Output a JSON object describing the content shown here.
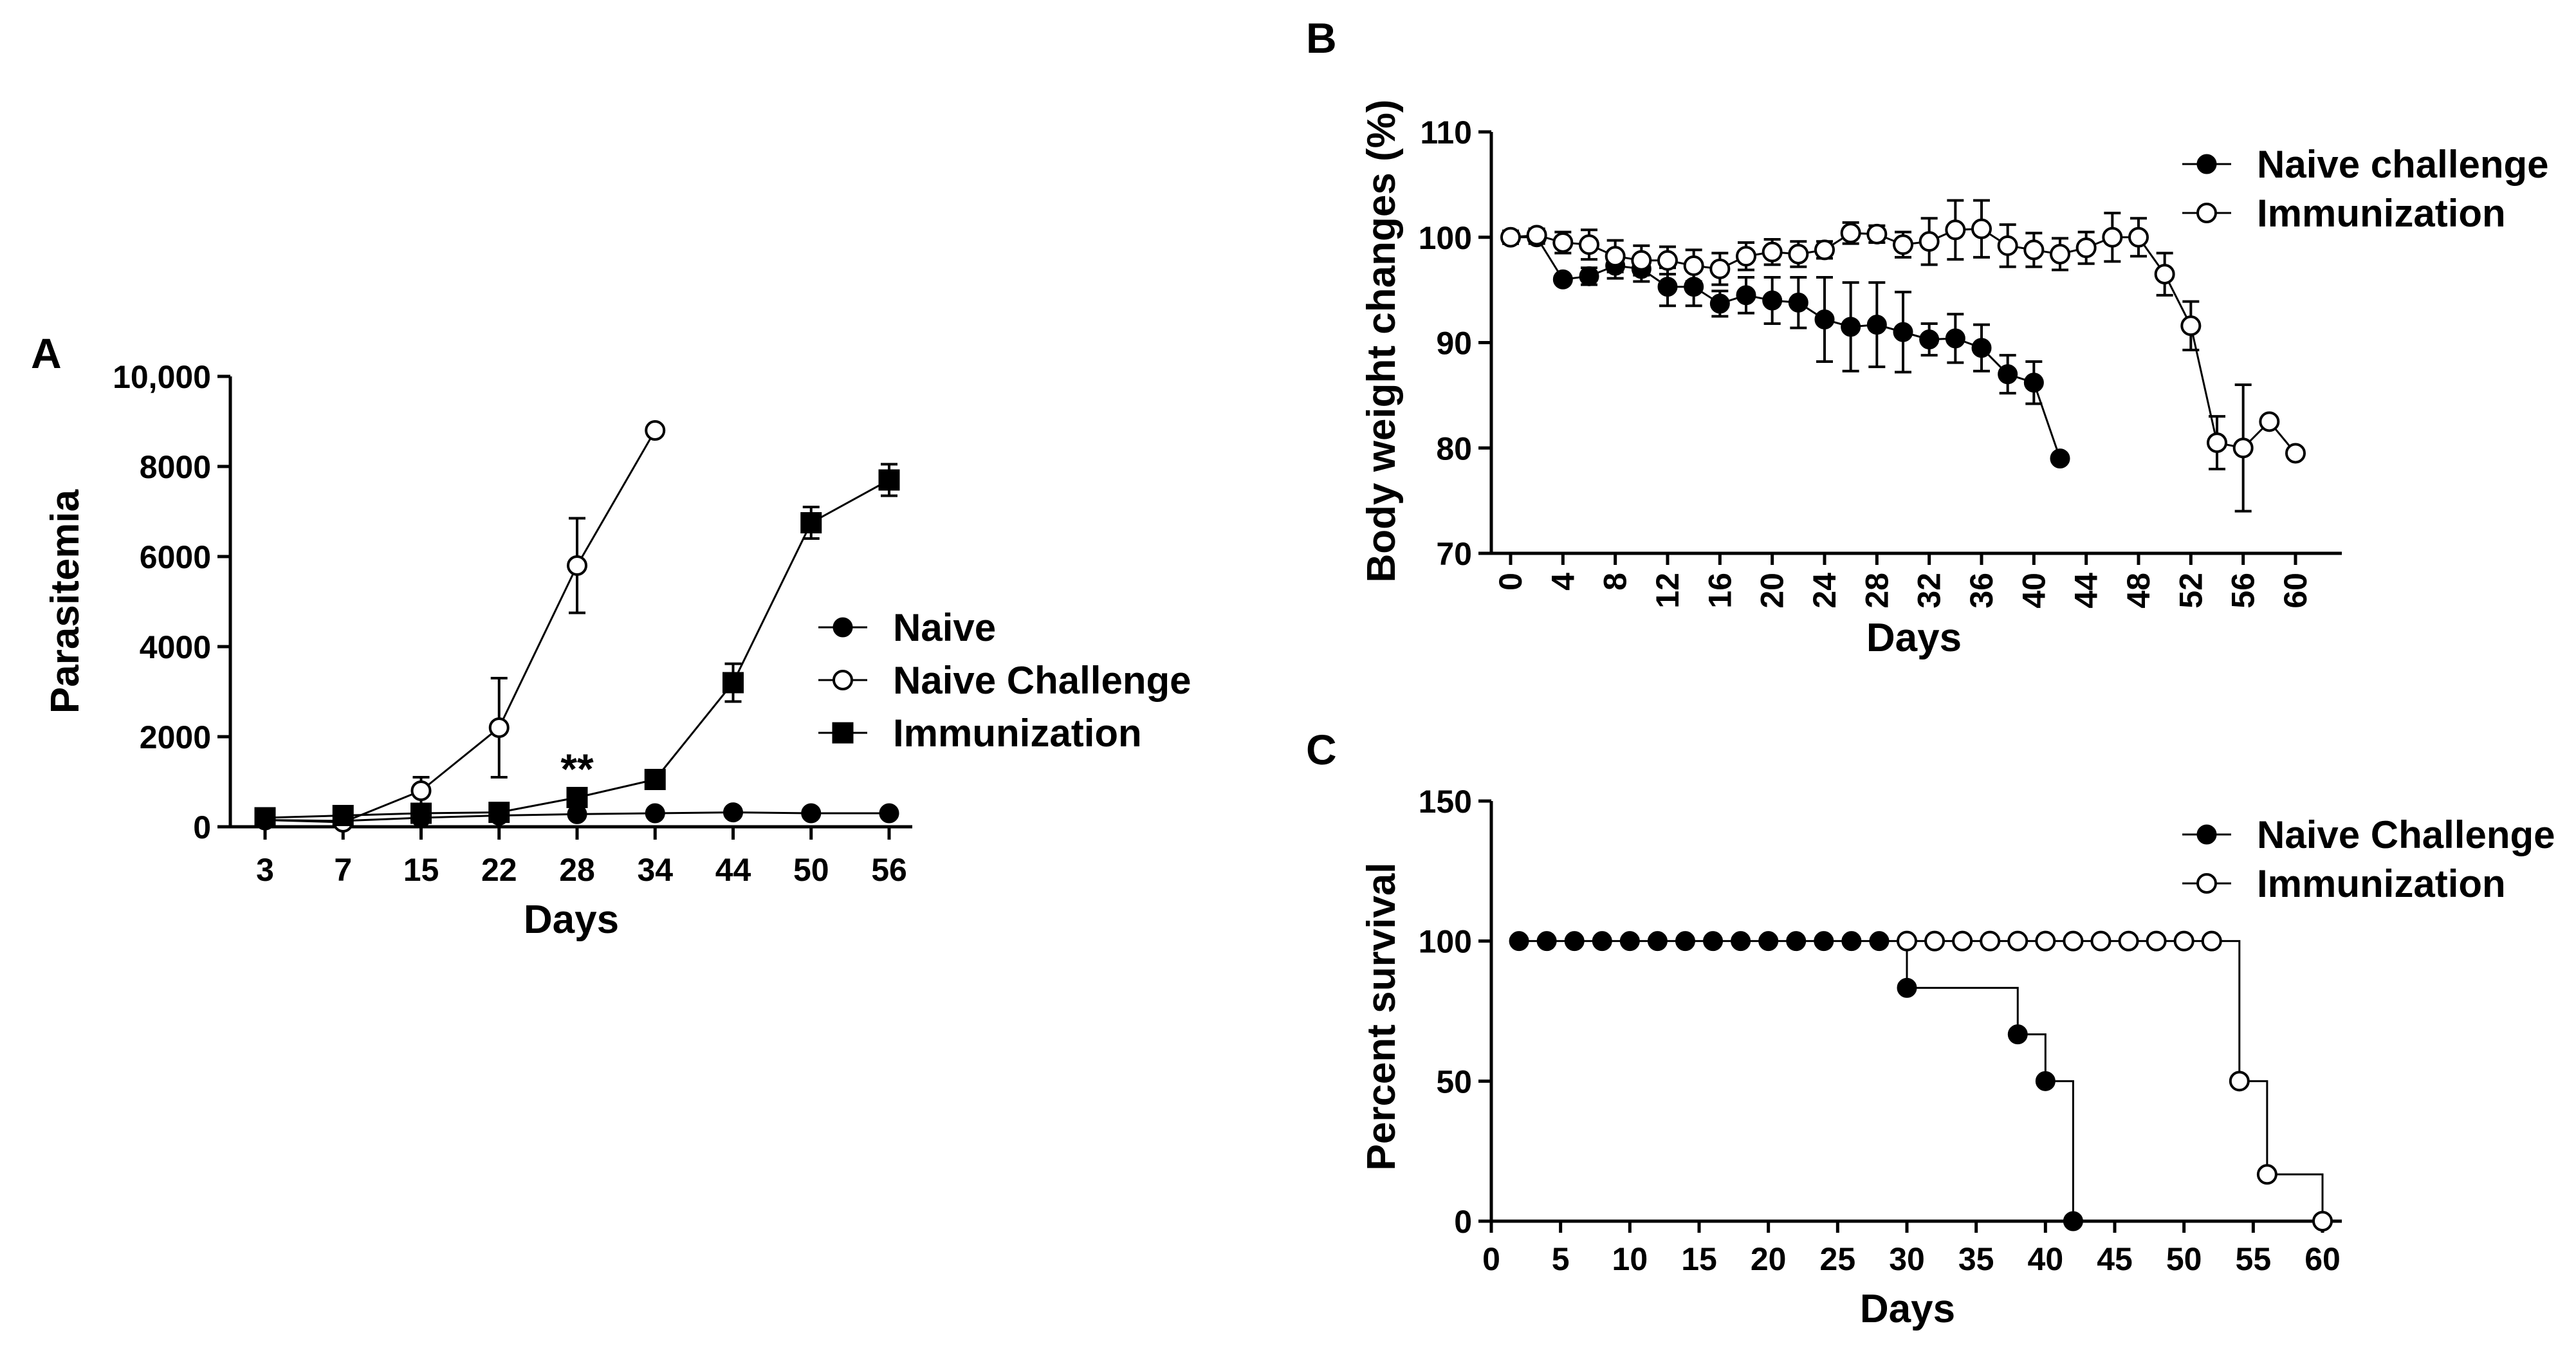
{
  "colors": {
    "ink": "#000000",
    "background": "#ffffff"
  },
  "chart_data": [
    {
      "panel": "A",
      "type": "line",
      "title": "",
      "xlabel": "Days",
      "ylabel": "Parasitemia",
      "categories": [
        "3",
        "7",
        "15",
        "22",
        "28",
        "34",
        "44",
        "50",
        "56"
      ],
      "ylim": [
        0,
        10000
      ],
      "yticks": [
        0,
        2000,
        4000,
        6000,
        8000,
        10000
      ],
      "ytick_labels": [
        "0",
        "2000",
        "4000",
        "6000",
        "8000",
        "10,000"
      ],
      "annotation": {
        "text": "**",
        "category": "28"
      },
      "series": [
        {
          "name": "Naive",
          "marker": "filled-circle",
          "values": [
            150,
            130,
            200,
            250,
            280,
            300,
            320,
            300,
            300
          ],
          "errors": [
            0,
            0,
            0,
            0,
            0,
            0,
            0,
            0,
            0
          ]
        },
        {
          "name": "Naive Challenge",
          "marker": "open-circle",
          "values": [
            150,
            100,
            800,
            2200,
            5800,
            8800,
            null,
            null,
            null
          ],
          "errors": [
            0,
            0,
            300,
            1100,
            1050,
            0,
            null,
            null,
            null
          ]
        },
        {
          "name": "Immunization",
          "marker": "filled-square",
          "values": [
            200,
            250,
            300,
            320,
            650,
            1050,
            3200,
            6750,
            7700
          ],
          "errors": [
            0,
            0,
            0,
            0,
            100,
            0,
            420,
            350,
            350
          ]
        }
      ]
    },
    {
      "panel": "B",
      "type": "line",
      "title": "",
      "xlabel": "Days",
      "ylabel": "Body weight changes (%)",
      "xlim": [
        0,
        60
      ],
      "xticks": [
        0,
        4,
        8,
        12,
        16,
        20,
        24,
        28,
        32,
        36,
        40,
        44,
        48,
        52,
        56,
        60
      ],
      "ylim": [
        70,
        110
      ],
      "yticks": [
        70,
        80,
        90,
        100,
        110
      ],
      "series": [
        {
          "name": "Naive challenge",
          "marker": "filled-circle",
          "x": [
            0,
            2,
            4,
            6,
            8,
            10,
            12,
            14,
            16,
            18,
            20,
            22,
            24,
            26,
            28,
            30,
            32,
            34,
            36,
            38,
            40,
            42
          ],
          "values": [
            100,
            100,
            96,
            96.3,
            97.3,
            97,
            95.3,
            95.3,
            93.7,
            94.5,
            94,
            93.8,
            92.2,
            91.5,
            91.7,
            91,
            90.3,
            90.4,
            89.5,
            87,
            86.2,
            79
          ],
          "errors": [
            0.6,
            0.6,
            0,
            0.8,
            1.2,
            1.2,
            1.8,
            1.8,
            1.2,
            1.7,
            2.2,
            2.4,
            4.0,
            4.2,
            4.0,
            3.8,
            1.5,
            2.3,
            2.2,
            1.8,
            2.0,
            0
          ]
        },
        {
          "name": "Immunization",
          "marker": "open-circle",
          "x": [
            0,
            2,
            4,
            6,
            8,
            10,
            12,
            14,
            16,
            18,
            20,
            22,
            24,
            26,
            28,
            30,
            32,
            34,
            36,
            38,
            40,
            42,
            44,
            46,
            48,
            50,
            52,
            54,
            56,
            58,
            60
          ],
          "values": [
            100,
            100.2,
            99.5,
            99.3,
            98.2,
            97.8,
            97.8,
            97.3,
            97,
            98.2,
            98.6,
            98.4,
            98.8,
            100.4,
            100.3,
            99.3,
            99.6,
            100.7,
            100.8,
            99.2,
            98.8,
            98.4,
            99,
            100,
            100,
            96.5,
            91.6,
            80.5,
            80,
            82.5,
            79.5
          ],
          "errors": [
            0.6,
            0.6,
            1.0,
            1.4,
            1.5,
            1.4,
            1.3,
            1.5,
            1.5,
            1.3,
            1.2,
            1.2,
            0.8,
            1.0,
            0.8,
            1.2,
            2.2,
            2.8,
            2.7,
            2.0,
            1.6,
            1.5,
            1.5,
            2.3,
            1.8,
            2.0,
            2.3,
            2.5,
            6.0,
            0,
            0
          ]
        }
      ]
    },
    {
      "panel": "C",
      "type": "line",
      "title": "",
      "xlabel": "Days",
      "ylabel": "Percent survival",
      "xlim": [
        0,
        60
      ],
      "xticks": [
        0,
        5,
        10,
        15,
        20,
        25,
        30,
        35,
        40,
        45,
        50,
        55,
        60
      ],
      "ylim": [
        0,
        150
      ],
      "yticks": [
        0,
        50,
        100,
        150
      ],
      "series": [
        {
          "name": "Naive Challenge",
          "marker": "filled-circle",
          "step": true,
          "x": [
            2,
            4,
            6,
            8,
            10,
            12,
            14,
            16,
            18,
            20,
            22,
            24,
            26,
            28,
            30,
            38,
            40,
            42
          ],
          "values": [
            100,
            100,
            100,
            100,
            100,
            100,
            100,
            100,
            100,
            100,
            100,
            100,
            100,
            100,
            83.3,
            66.7,
            50,
            0
          ]
        },
        {
          "name": "Immunization",
          "marker": "open-circle",
          "step": true,
          "x": [
            30,
            32,
            34,
            36,
            38,
            40,
            42,
            44,
            46,
            48,
            50,
            52,
            54,
            56,
            60
          ],
          "values": [
            100,
            100,
            100,
            100,
            100,
            100,
            100,
            100,
            100,
            100,
            100,
            100,
            50,
            16.7,
            0
          ]
        }
      ]
    }
  ]
}
